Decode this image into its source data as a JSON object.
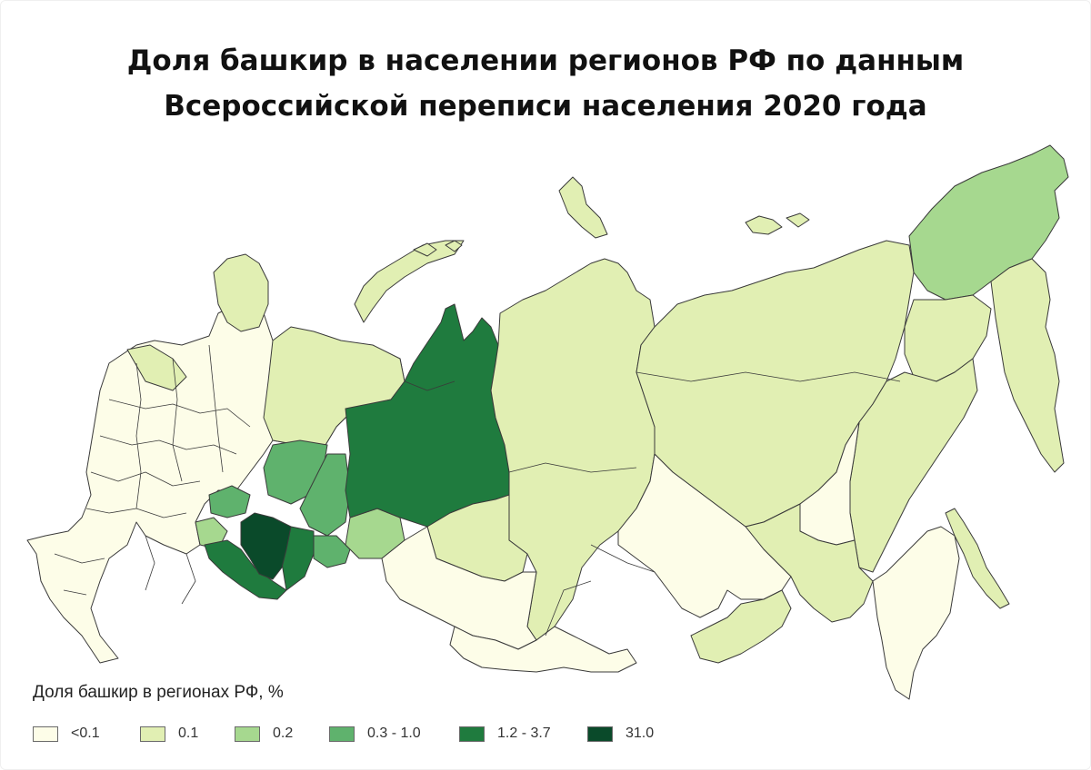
{
  "title": {
    "line1": "Доля башкир в населении регионов РФ по данным",
    "line2": "Всероссийской переписи населения 2020 года"
  },
  "legend": {
    "title": "Доля башкир в регионах РФ, %",
    "items": [
      {
        "label": "<0.1",
        "color": "#fdfde8"
      },
      {
        "label": "0.1",
        "color": "#e1efb3"
      },
      {
        "label": "0.2",
        "color": "#a6d88f"
      },
      {
        "label": "0.3 - 1.0",
        "color": "#5fb26d"
      },
      {
        "label": "1.2 - 3.7",
        "color": "#1f7b3e"
      },
      {
        "label": "31.0",
        "color": "#0a4a2a"
      }
    ]
  }
}
